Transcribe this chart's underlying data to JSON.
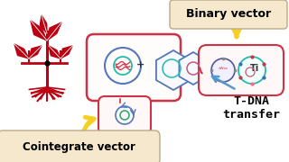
{
  "bg_color": "#ffffff",
  "binary_vector_label": "Binary vector",
  "cointegrate_label": "Cointegrate vector",
  "tdna_label": "T-DNA\ntransfer",
  "ti_label": "Ti",
  "label_box_color": "#f5e8cc",
  "label_box_edge": "#ccaa77",
  "plant_color": "#bb0011",
  "red_outline": "#cc3344",
  "blue_outline": "#5577bb",
  "green_outline": "#33aa77",
  "teal_outline": "#22bbaa",
  "fig_width": 3.2,
  "fig_height": 1.8,
  "dpi": 100
}
